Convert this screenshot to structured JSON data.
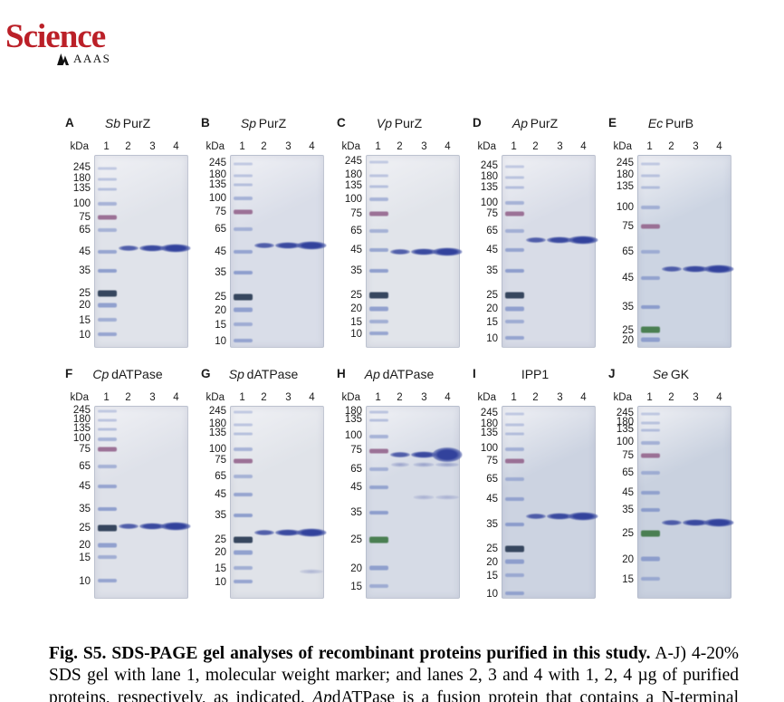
{
  "header": {
    "logo_text": "Science",
    "logo_sub": "AAAS",
    "logo_color": "#bb2028"
  },
  "figure": {
    "lane_headers": [
      "kDa",
      "1",
      "2",
      "3",
      "4"
    ],
    "colors": {
      "band_blue": "#32429c",
      "ladder_blue": "#7c8fc7",
      "ladder_purple": "#96688f",
      "ladder_dark": "#36465e",
      "ladder_green": "#4a7f52"
    },
    "panels": [
      {
        "letter": "A",
        "org": "Sb",
        "name": "PurZ",
        "gel_bg": "#e0e3ea",
        "markers": [
          245,
          180,
          135,
          100,
          75,
          65,
          45,
          35,
          25,
          20,
          15,
          10
        ],
        "marker_f": [
          0.065,
          0.121,
          0.173,
          0.252,
          0.322,
          0.388,
          0.5,
          0.603,
          0.72,
          0.78,
          0.86,
          0.934
        ],
        "band": {
          "kda": 46,
          "f": 0.485
        },
        "minor": [],
        "marker25": "dark"
      },
      {
        "letter": "B",
        "org": "Sp",
        "name": "PurZ",
        "gel_bg": "#d9dde8",
        "markers": [
          245,
          180,
          135,
          100,
          75,
          65,
          45,
          35,
          25,
          20,
          15,
          10
        ],
        "marker_f": [
          0.042,
          0.103,
          0.154,
          0.224,
          0.294,
          0.383,
          0.5,
          0.612,
          0.738,
          0.808,
          0.883,
          0.967
        ],
        "band": {
          "kda": 47,
          "f": 0.467
        },
        "minor": [],
        "marker25": "dark"
      },
      {
        "letter": "C",
        "org": "Vp",
        "name": "PurZ",
        "gel_bg": "#e1e4ea",
        "markers": [
          245,
          180,
          135,
          100,
          75,
          65,
          45,
          35,
          25,
          20,
          15,
          10
        ],
        "marker_f": [
          0.033,
          0.103,
          0.159,
          0.229,
          0.304,
          0.393,
          0.491,
          0.603,
          0.729,
          0.799,
          0.869,
          0.93
        ],
        "band": {
          "kda": 44,
          "f": 0.5
        },
        "minor": [],
        "marker25": "dark"
      },
      {
        "letter": "D",
        "org": "Ap",
        "name": "PurZ",
        "gel_bg": "#d8dce7",
        "markers": [
          245,
          180,
          135,
          100,
          75,
          65,
          45,
          35,
          25,
          20,
          15,
          10
        ],
        "marker_f": [
          0.056,
          0.112,
          0.168,
          0.248,
          0.304,
          0.393,
          0.491,
          0.603,
          0.729,
          0.799,
          0.869,
          0.953
        ],
        "band": {
          "kda": 55,
          "f": 0.439
        },
        "minor": [],
        "marker25": "dark"
      },
      {
        "letter": "E",
        "org": "Ec",
        "name": "PurB",
        "gel_bg": "#ccd4e2",
        "markers": [
          245,
          180,
          135,
          100,
          75,
          65,
          45,
          35,
          25,
          20
        ],
        "marker_f": [
          0.042,
          0.103,
          0.164,
          0.271,
          0.369,
          0.5,
          0.64,
          0.79,
          0.911,
          0.963
        ],
        "band": {
          "kda": 49,
          "f": 0.594
        },
        "minor": [],
        "marker25": "green"
      },
      {
        "letter": "F",
        "org": "Cp",
        "name": "dATPase",
        "gel_bg": "#dee1e9",
        "markers": [
          245,
          180,
          135,
          100,
          75,
          65,
          45,
          35,
          25,
          20,
          15,
          10
        ],
        "marker_f": [
          0.023,
          0.07,
          0.117,
          0.169,
          0.225,
          0.315,
          0.418,
          0.535,
          0.634,
          0.723,
          0.789,
          0.911
        ],
        "band": {
          "kda": 26,
          "f": 0.624
        },
        "minor": [],
        "marker25": "dark"
      },
      {
        "letter": "G",
        "org": "Sp",
        "name": "dATPase",
        "gel_bg": "#e0e3e9",
        "markers": [
          245,
          180,
          135,
          100,
          75,
          65,
          45,
          35,
          25,
          20,
          15,
          10
        ],
        "marker_f": [
          0.028,
          0.094,
          0.141,
          0.225,
          0.282,
          0.366,
          0.46,
          0.568,
          0.695,
          0.761,
          0.845,
          0.915
        ],
        "band": {
          "kda": 27,
          "f": 0.657
        },
        "minor": [
          {
            "kda": 12,
            "f": 0.862,
            "lanes": [
              4
            ],
            "op": 0.3
          }
        ],
        "marker25": "dark"
      },
      {
        "letter": "H",
        "org": "Ap",
        "name": "dATPase",
        "gel_bg": "#d6dbe6",
        "markers": [
          180,
          135,
          100,
          75,
          65,
          45,
          35,
          25,
          20,
          15
        ],
        "marker_f": [
          0.028,
          0.07,
          0.155,
          0.23,
          0.329,
          0.423,
          0.554,
          0.695,
          0.845,
          0.939
        ],
        "band": {
          "kda": 73,
          "f": 0.249
        },
        "minor": [
          {
            "kda": 67,
            "f": 0.302,
            "lanes": [
              2,
              3,
              4
            ],
            "op": 0.4
          },
          {
            "kda": 42,
            "f": 0.474,
            "lanes": [
              3,
              4
            ],
            "op": 0.3
          }
        ],
        "marker25": "green",
        "lane4_tall": true
      },
      {
        "letter": "I",
        "org": "",
        "name": "IPP1",
        "gel_bg": "#ccd3e1",
        "markers": [
          245,
          180,
          135,
          100,
          75,
          65,
          45,
          35,
          25,
          20,
          15,
          10
        ],
        "marker_f": [
          0.038,
          0.094,
          0.141,
          0.221,
          0.286,
          0.38,
          0.484,
          0.615,
          0.742,
          0.812,
          0.883,
          0.977
        ],
        "band": {
          "kda": 38,
          "f": 0.573
        },
        "minor": [],
        "marker25": "dark"
      },
      {
        "letter": "J",
        "org": "Se",
        "name": "GK",
        "gel_bg": "#c9d1df",
        "markers": [
          245,
          180,
          135,
          100,
          75,
          65,
          45,
          35,
          25,
          20,
          15
        ],
        "marker_f": [
          0.038,
          0.085,
          0.122,
          0.188,
          0.258,
          0.347,
          0.451,
          0.54,
          0.662,
          0.798,
          0.901
        ],
        "band": {
          "kda": 29,
          "f": 0.606
        },
        "minor": [],
        "marker25": "green"
      }
    ]
  },
  "caption": {
    "parts": [
      {
        "style": "bold",
        "text": "Fig. S5. SDS-PAGE gel analyses of recombinant proteins purified in this study."
      },
      {
        "style": "normal",
        "text": " A-J) 4-20% SDS gel with lane 1, molecular weight marker; and lanes 2, 3 and 4 with 1, 2, 4 µg of purified proteins, respectively, as indicated. "
      },
      {
        "style": "italic",
        "text": "Ap"
      },
      {
        "style": "normal",
        "text": "dATPase is a fusion protein that contains a N-terminal MBP."
      }
    ]
  }
}
